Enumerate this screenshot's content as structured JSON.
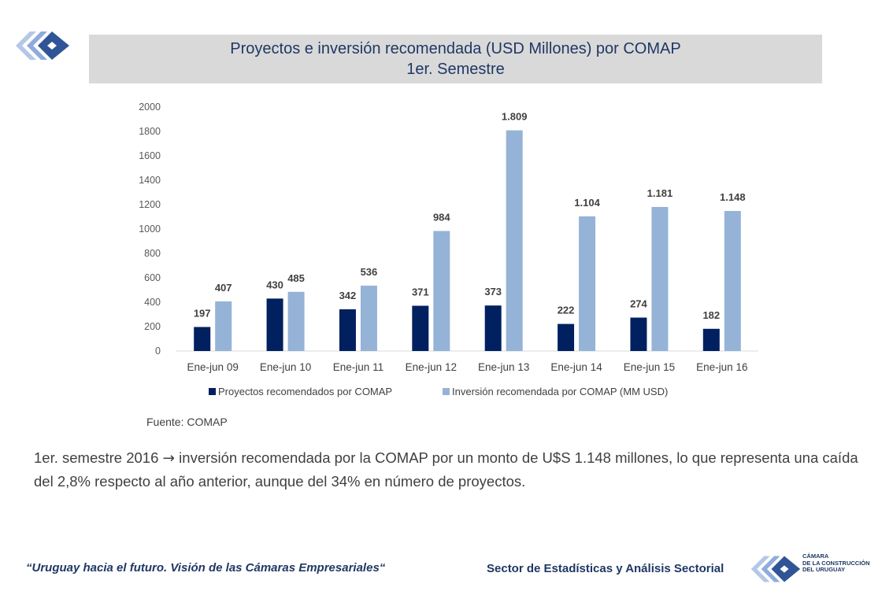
{
  "header": {
    "title_line1": "Proyectos e inversión recomendada (USD Millones) por COMAP",
    "title_line2": "1er. Semestre"
  },
  "chart_data": {
    "type": "bar",
    "categories": [
      "Ene-jun 09",
      "Ene-jun 10",
      "Ene-jun 11",
      "Ene-jun 12",
      "Ene-jun 13",
      "Ene-jun 14",
      "Ene-jun 15",
      "Ene-jun 16"
    ],
    "series": [
      {
        "name": "Proyectos recomendados por COMAP",
        "values": [
          197,
          430,
          342,
          371,
          373,
          222,
          274,
          182
        ],
        "labels": [
          "197",
          "430",
          "342",
          "371",
          "373",
          "222",
          "274",
          "182"
        ],
        "color": "#002060"
      },
      {
        "name": "Inversión recomendada por COMAP (MM USD)",
        "values": [
          407,
          485,
          536,
          984,
          1809,
          1104,
          1181,
          1148
        ],
        "labels": [
          "407",
          "485",
          "536",
          "984",
          "1.809",
          "1.104",
          "1.181",
          "1.148"
        ],
        "color": "#95b3d7"
      }
    ],
    "yticks": [
      0,
      200,
      400,
      600,
      800,
      1000,
      1200,
      1400,
      1600,
      1800,
      2000
    ],
    "ylim": [
      0,
      2000
    ],
    "grid": false,
    "legend_position": "bottom"
  },
  "source_text": "Fuente: COMAP",
  "summary": {
    "part1": "1er. semestre 2016 ",
    "arrow": "→",
    "part2": " inversión recomendada por la COMAP por un monto de U$S 1.148 millones, lo que representa una caída del 2,8% respecto al año anterior, aunque del 34% en número de proyectos."
  },
  "footer": {
    "quote": "“Uruguay hacia el futuro. Visión de las Cámaras Empresariales“",
    "sector": "Sector de Estadísticas y Análisis Sectorial",
    "org_line1": "CÁMARA",
    "org_line2": "DE LA CONSTRUCCIÓN",
    "org_line3": "DEL URUGUAY"
  },
  "colors": {
    "brand_dark": "#1f3864",
    "brand_light": "#95b3d7",
    "title_band": "#d9d9d9"
  }
}
